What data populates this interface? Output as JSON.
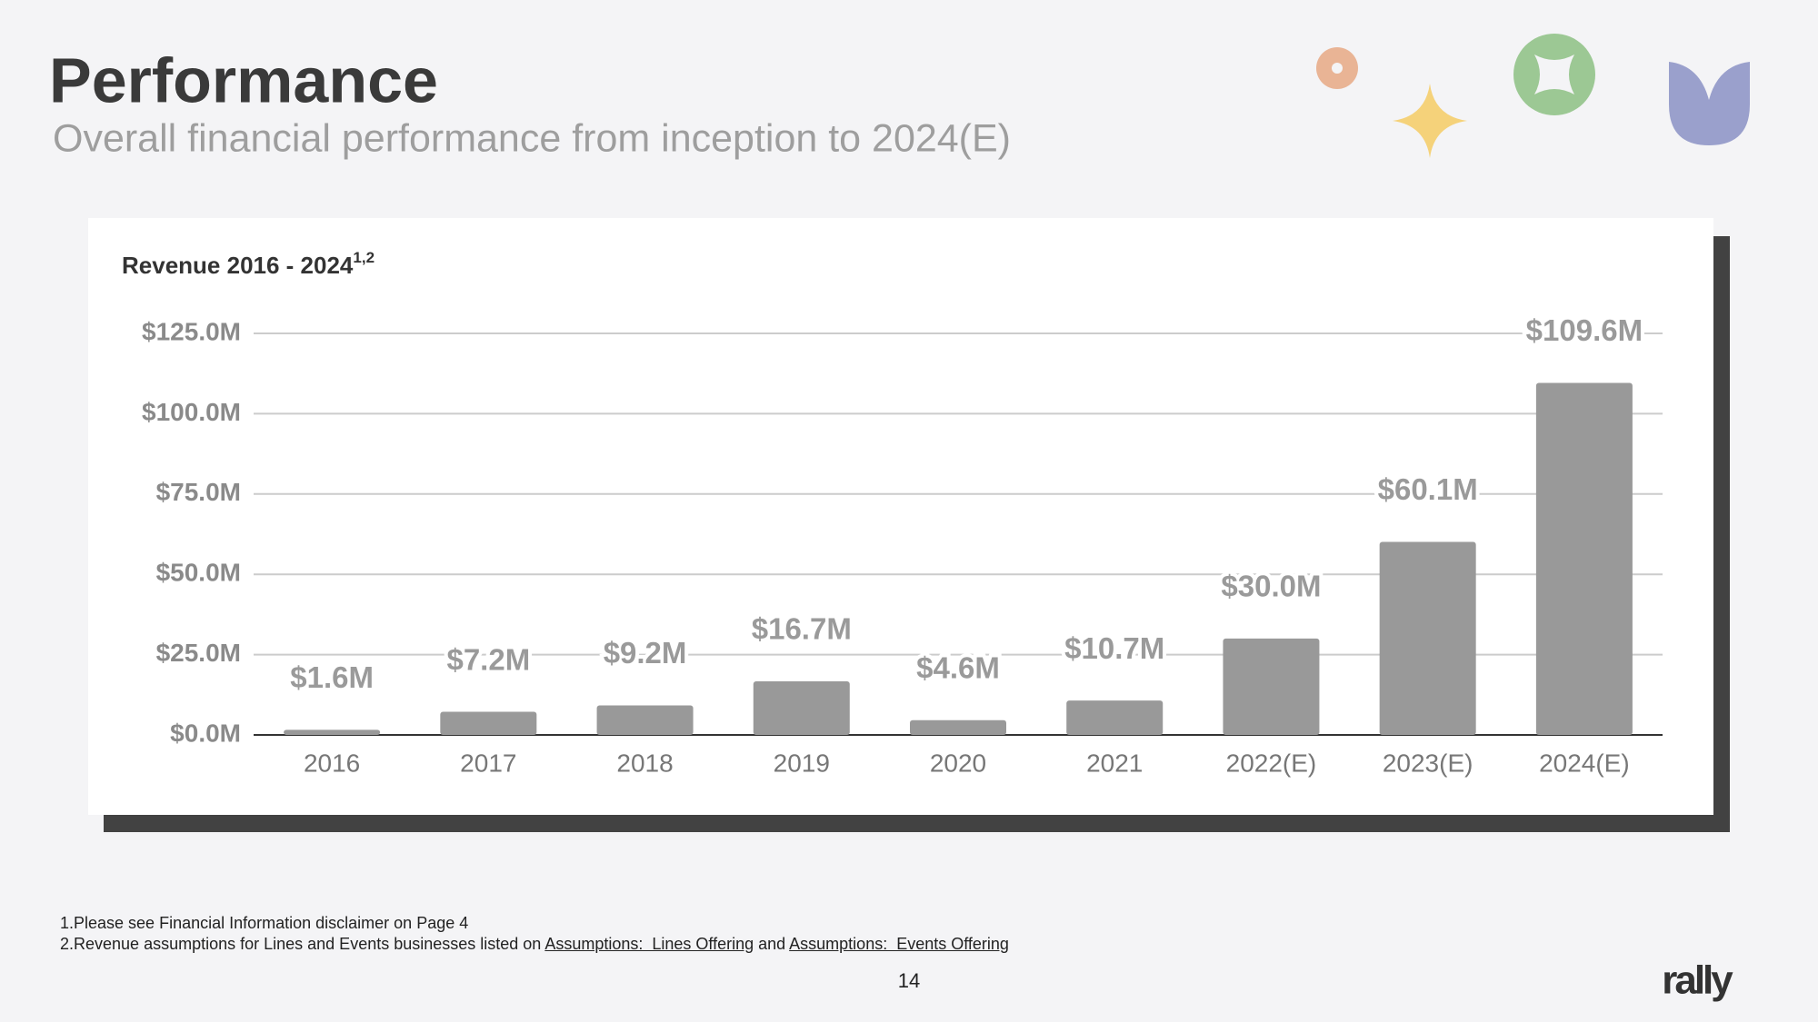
{
  "header": {
    "title": "Performance",
    "subtitle": "Overall financial performance from inception to 2024(E)"
  },
  "chart_data": {
    "type": "bar",
    "title": "Revenue 2016 - 2024",
    "title_superscript": "1,2",
    "categories": [
      "2016",
      "2017",
      "2018",
      "2019",
      "2020",
      "2021",
      "2022(E)",
      "2023(E)",
      "2024(E)"
    ],
    "values": [
      1.6,
      7.2,
      9.2,
      16.7,
      4.6,
      10.7,
      30.0,
      60.1,
      109.6
    ],
    "value_labels": [
      "$1.6M",
      "$7.2M",
      "$9.2M",
      "$16.7M",
      "$4.6M",
      "$10.7M",
      "$30.0M",
      "$60.1M",
      "$109.6M"
    ],
    "color": "#999999",
    "ylim": [
      0,
      125
    ],
    "yticks": [
      {
        "value": 0,
        "label": "$0.0M"
      },
      {
        "value": 25,
        "label": "$25.0M"
      },
      {
        "value": 50,
        "label": "$50.0M"
      },
      {
        "value": 75,
        "label": "$75.0M"
      },
      {
        "value": 100,
        "label": "$100.0M"
      },
      {
        "value": 125,
        "label": "$125.0M"
      }
    ],
    "grid": true
  },
  "footnotes": {
    "note1": "1.Please see Financial Information disclaimer on Page 4",
    "note2": {
      "text": "2.Revenue assumptions for Lines and Events businesses listed on ",
      "link1": "Assumptions:  Lines Offering",
      "joiner": " and ",
      "link2": "Assumptions:  Events Offering"
    }
  },
  "page_number": "14",
  "logo": "rally"
}
